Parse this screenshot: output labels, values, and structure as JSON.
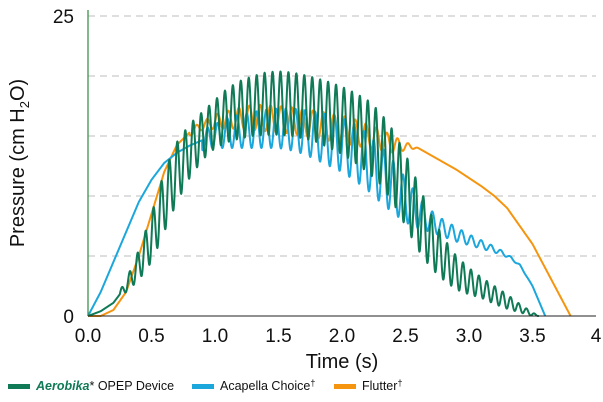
{
  "chart_data": {
    "type": "line",
    "title": "",
    "xlabel": "Time (s)",
    "ylabel_parts": [
      "Pressure (cm H",
      "2",
      "O)"
    ],
    "xlim": [
      0,
      4
    ],
    "ylim": [
      0,
      25
    ],
    "x_ticks": [
      "0.0",
      "0.5",
      "1.0",
      "1.5",
      "2.0",
      "2.5",
      "3.0",
      "3.5",
      "4"
    ],
    "y_ticks": [
      "0",
      "25"
    ],
    "grid": "horizontal-dashed",
    "legend_position": "bottom",
    "series": [
      {
        "name": "Aerobika",
        "name_suffix": "* OPEP Device",
        "color": "#0f7a55",
        "envelope_x": [
          0.0,
          0.1,
          0.2,
          0.3,
          0.4,
          0.5,
          0.6,
          0.7,
          0.8,
          0.9,
          1.0,
          1.1,
          1.2,
          1.3,
          1.4,
          1.5,
          1.6,
          1.7,
          1.8,
          1.9,
          2.0,
          2.1,
          2.2,
          2.3,
          2.4,
          2.5,
          2.6,
          2.7,
          2.8,
          2.9,
          3.0,
          3.1,
          3.2,
          3.3,
          3.4,
          3.5,
          3.55
        ],
        "envelope_upper": [
          0.0,
          0.5,
          1.2,
          3.0,
          5.5,
          8.5,
          12.0,
          14.5,
          16.0,
          17.0,
          18.0,
          19.0,
          19.6,
          20.0,
          20.3,
          20.4,
          20.3,
          20.1,
          19.8,
          19.5,
          19.1,
          18.6,
          18.0,
          17.0,
          15.5,
          13.5,
          11.0,
          8.5,
          6.5,
          5.0,
          4.0,
          3.2,
          2.5,
          1.8,
          1.0,
          0.3,
          0.0
        ],
        "envelope_lower": [
          0.0,
          0.3,
          1.0,
          2.0,
          3.0,
          4.5,
          7.0,
          9.5,
          11.5,
          13.0,
          14.0,
          14.5,
          14.8,
          15.0,
          15.1,
          15.1,
          15.0,
          14.8,
          14.5,
          14.0,
          13.5,
          12.8,
          12.0,
          11.0,
          9.5,
          7.5,
          5.5,
          4.0,
          3.0,
          2.2,
          1.8,
          1.5,
          1.0,
          0.6,
          0.3,
          0.0,
          0.0
        ],
        "oscillation_frequency_hz": 16,
        "oscillation_start_s": 0.25
      },
      {
        "name": "Acapella Choice",
        "name_suffix": "†",
        "color": "#1ba7dc",
        "envelope_x": [
          0.0,
          0.1,
          0.2,
          0.3,
          0.4,
          0.5,
          0.6,
          0.7,
          0.8,
          0.9,
          1.0,
          1.1,
          1.2,
          1.3,
          1.4,
          1.5,
          1.6,
          1.7,
          1.8,
          1.9,
          2.0,
          2.1,
          2.2,
          2.3,
          2.4,
          2.5,
          2.6,
          2.7,
          2.8,
          2.9,
          3.0,
          3.1,
          3.2,
          3.3,
          3.4,
          3.5,
          3.6
        ],
        "envelope_upper": [
          0.0,
          2.0,
          4.5,
          7.0,
          9.5,
          11.5,
          13.0,
          14.0,
          14.8,
          15.5,
          16.0,
          16.5,
          16.8,
          17.0,
          17.2,
          17.3,
          17.3,
          17.2,
          17.0,
          16.8,
          16.5,
          16.0,
          15.2,
          14.2,
          13.0,
          11.5,
          10.0,
          8.8,
          8.0,
          7.4,
          6.8,
          6.3,
          5.8,
          5.2,
          4.3,
          2.5,
          0.0
        ],
        "envelope_lower": [
          0.0,
          2.0,
          4.5,
          7.0,
          9.5,
          11.2,
          12.5,
          13.2,
          13.6,
          13.8,
          14.0,
          14.0,
          14.0,
          14.0,
          14.0,
          14.0,
          13.8,
          13.5,
          13.0,
          12.5,
          12.0,
          11.3,
          10.5,
          9.5,
          8.6,
          7.8,
          7.3,
          7.0,
          6.6,
          6.2,
          5.9,
          5.6,
          5.3,
          4.9,
          4.2,
          2.5,
          0.0
        ],
        "oscillation_frequency_hz": 13,
        "oscillation_start_s": 0.9
      },
      {
        "name": "Flutter",
        "name_suffix": "†",
        "color": "#f5950f",
        "envelope_x": [
          0.0,
          0.1,
          0.2,
          0.3,
          0.4,
          0.5,
          0.6,
          0.7,
          0.8,
          0.9,
          1.0,
          1.1,
          1.2,
          1.3,
          1.4,
          1.5,
          1.6,
          1.7,
          1.8,
          1.9,
          2.0,
          2.1,
          2.2,
          2.3,
          2.4,
          2.5,
          2.6,
          2.7,
          2.8,
          2.9,
          3.0,
          3.1,
          3.2,
          3.3,
          3.4,
          3.5,
          3.6,
          3.7,
          3.8
        ],
        "envelope_upper": [
          0.0,
          0.0,
          0.5,
          2.0,
          5.0,
          8.5,
          12.0,
          14.5,
          15.6,
          16.2,
          16.8,
          17.1,
          17.4,
          17.6,
          17.6,
          17.5,
          17.4,
          17.2,
          17.1,
          16.9,
          16.7,
          16.4,
          16.0,
          15.6,
          15.0,
          14.5,
          14.0,
          13.4,
          12.8,
          12.2,
          11.5,
          10.8,
          10.0,
          9.0,
          7.5,
          6.0,
          4.0,
          2.0,
          0.0
        ],
        "envelope_lower": [
          0.0,
          0.0,
          0.5,
          2.0,
          5.0,
          8.5,
          12.0,
          14.0,
          15.0,
          15.5,
          15.6,
          15.6,
          15.6,
          15.5,
          15.4,
          15.3,
          15.2,
          15.0,
          14.8,
          14.6,
          14.4,
          14.2,
          14.0,
          13.8,
          13.6,
          13.8,
          14.0,
          13.4,
          12.8,
          12.2,
          11.5,
          10.8,
          10.0,
          9.0,
          7.5,
          6.0,
          4.0,
          2.0,
          0.0
        ],
        "oscillation_frequency_hz": 12,
        "oscillation_start_s": 0.8
      }
    ]
  }
}
